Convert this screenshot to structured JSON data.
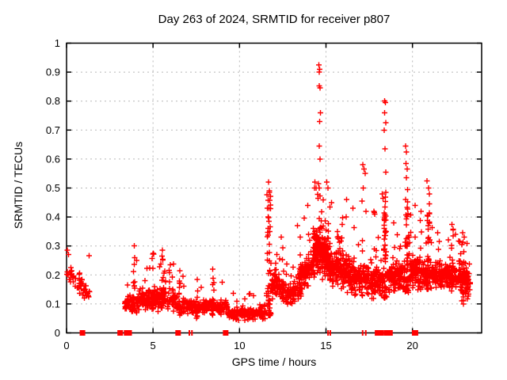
{
  "chart": {
    "title": "Day 263 of 2024, SRMTID for receiver p807",
    "xlabel": "GPS time / hours",
    "ylabel": "SRMTID / TECUs"
  },
  "colors": {
    "marker": "#ff0000",
    "grid": "#b8b8b8",
    "frame": "#000000",
    "background": "#ffffff",
    "text": "#000000"
  },
  "chart_data": {
    "type": "scatter",
    "title": "Day 263 of 2024, SRMTID for receiver p807",
    "xlabel": "GPS time / hours",
    "ylabel": "SRMTID / TECUs",
    "series_name": "SRMTID",
    "marker": "plus",
    "marker_color": "#ff0000",
    "grid": true,
    "legend": "none",
    "xlim": [
      0,
      24
    ],
    "ylim": [
      0,
      1
    ],
    "x_ticks": [
      {
        "v": 0,
        "label": "0"
      },
      {
        "v": 5,
        "label": "5"
      },
      {
        "v": 10,
        "label": "10"
      },
      {
        "v": 15,
        "label": "15"
      },
      {
        "v": 20,
        "label": "20"
      }
    ],
    "y_ticks": [
      {
        "v": 0,
        "label": "0"
      },
      {
        "v": 0.1,
        "label": "0.1"
      },
      {
        "v": 0.2,
        "label": "0.2"
      },
      {
        "v": 0.3,
        "label": "0.3"
      },
      {
        "v": 0.4,
        "label": "0.4"
      },
      {
        "v": 0.5,
        "label": "0.5"
      },
      {
        "v": 0.6,
        "label": "0.6"
      },
      {
        "v": 0.7,
        "label": "0.7"
      },
      {
        "v": 0.8,
        "label": "0.8"
      },
      {
        "v": 0.9,
        "label": "0.9"
      },
      {
        "v": 1,
        "label": "1"
      }
    ],
    "seed": 263,
    "outlier_points": [
      [
        14.58,
        0.925
      ],
      [
        14.63,
        0.91
      ],
      [
        14.6,
        0.9
      ],
      [
        14.62,
        0.853
      ],
      [
        14.66,
        0.845
      ],
      [
        14.68,
        0.76
      ],
      [
        14.63,
        0.73
      ],
      [
        14.6,
        0.645
      ],
      [
        14.65,
        0.6
      ],
      [
        14.57,
        0.515
      ],
      [
        14.62,
        0.5
      ],
      [
        15.05,
        0.52
      ],
      [
        15.12,
        0.5
      ],
      [
        17.12,
        0.58
      ],
      [
        17.2,
        0.565
      ],
      [
        17.27,
        0.55
      ],
      [
        17.15,
        0.5
      ],
      [
        17.08,
        0.455
      ],
      [
        17.32,
        0.42
      ],
      [
        17.78,
        0.42
      ],
      [
        17.8,
        0.415
      ],
      [
        17.82,
        0.41
      ],
      [
        18.38,
        0.8
      ],
      [
        18.43,
        0.795
      ],
      [
        18.4,
        0.76
      ],
      [
        18.45,
        0.725
      ],
      [
        18.37,
        0.7
      ],
      [
        18.42,
        0.635
      ],
      [
        18.46,
        0.555
      ],
      [
        18.25,
        0.48
      ],
      [
        18.3,
        0.465
      ],
      [
        18.92,
        0.38
      ],
      [
        19.6,
        0.645
      ],
      [
        19.66,
        0.625
      ],
      [
        19.62,
        0.585
      ],
      [
        19.7,
        0.565
      ],
      [
        19.64,
        0.535
      ],
      [
        19.72,
        0.495
      ],
      [
        20.85,
        0.525
      ],
      [
        20.92,
        0.5
      ],
      [
        20.97,
        0.48
      ],
      [
        20.15,
        0.44
      ],
      [
        20.5,
        0.42
      ],
      [
        11.68,
        0.52
      ],
      [
        11.73,
        0.49
      ],
      [
        11.7,
        0.43
      ],
      [
        11.66,
        0.4
      ],
      [
        11.75,
        0.35
      ],
      [
        16.2,
        0.46
      ],
      [
        16.55,
        0.43
      ],
      [
        15.32,
        0.45
      ],
      [
        14.35,
        0.52
      ],
      [
        14.42,
        0.5
      ],
      [
        12.42,
        0.33
      ],
      [
        12.15,
        0.27
      ],
      [
        13.95,
        0.44
      ],
      [
        13.52,
        0.33
      ],
      [
        22.28,
        0.375
      ],
      [
        22.35,
        0.355
      ],
      [
        22.9,
        0.345
      ],
      [
        23.0,
        0.33
      ],
      [
        21.45,
        0.345
      ],
      [
        0.05,
        0.285
      ],
      [
        0.12,
        0.27
      ],
      [
        3.92,
        0.3
      ],
      [
        5.55,
        0.285
      ],
      [
        5.02,
        0.275
      ],
      [
        6.0,
        0.235
      ],
      [
        6.55,
        0.215
      ],
      [
        7.55,
        0.185
      ],
      [
        8.45,
        0.22
      ],
      [
        9.0,
        0.175
      ],
      [
        10.6,
        0.135
      ]
    ],
    "zero_markers": [
      [
        0.92,
        7
      ],
      [
        3.1,
        7
      ],
      [
        3.45,
        6
      ],
      [
        3.62,
        7
      ],
      [
        6.45,
        7
      ],
      [
        7.1,
        2
      ],
      [
        7.25,
        2
      ],
      [
        9.2,
        7
      ],
      [
        15.12,
        2
      ],
      [
        15.25,
        2
      ],
      [
        17.12,
        2
      ],
      [
        17.3,
        2
      ],
      [
        18.05,
        10
      ],
      [
        18.2,
        7
      ],
      [
        18.55,
        8
      ],
      [
        18.7,
        7
      ],
      [
        20.15,
        8
      ]
    ],
    "density_clusters": [
      {
        "x0": 0.0,
        "x1": 1.35,
        "n": 60,
        "c0": 0.215,
        "c1": 0.13,
        "s": 0.035,
        "min": 0.105,
        "max": 0.29
      },
      {
        "x0": 3.35,
        "x1": 4.2,
        "n": 65,
        "c0": 0.105,
        "c1": 0.1,
        "s": 0.032,
        "min": 0.055,
        "max": 0.25
      },
      {
        "x0": 4.2,
        "x1": 6.35,
        "n": 185,
        "c0": 0.12,
        "c1": 0.115,
        "s": 0.04,
        "min": 0.05,
        "max": 0.25
      },
      {
        "x0": 6.35,
        "x1": 7.35,
        "n": 75,
        "c0": 0.095,
        "c1": 0.09,
        "s": 0.028,
        "min": 0.045,
        "max": 0.2
      },
      {
        "x0": 7.35,
        "x1": 9.35,
        "n": 135,
        "c0": 0.085,
        "c1": 0.09,
        "s": 0.028,
        "min": 0.04,
        "max": 0.19
      },
      {
        "x0": 9.35,
        "x1": 11.5,
        "n": 150,
        "c0": 0.065,
        "c1": 0.07,
        "s": 0.022,
        "min": 0.032,
        "max": 0.14
      },
      {
        "x0": 11.85,
        "x1": 12.55,
        "n": 80,
        "c0": 0.17,
        "c1": 0.155,
        "s": 0.05,
        "min": 0.09,
        "max": 0.3
      },
      {
        "x0": 12.55,
        "x1": 13.25,
        "n": 70,
        "c0": 0.13,
        "c1": 0.14,
        "s": 0.038,
        "min": 0.07,
        "max": 0.24
      },
      {
        "x0": 13.25,
        "x1": 14.25,
        "n": 110,
        "c0": 0.155,
        "c1": 0.24,
        "s": 0.055,
        "min": 0.09,
        "max": 0.4
      },
      {
        "x0": 14.25,
        "x1": 15.15,
        "n": 205,
        "c0": 0.29,
        "c1": 0.26,
        "s": 0.085,
        "min": 0.13,
        "max": 0.52,
        "tail": 0.06
      },
      {
        "x0": 15.15,
        "x1": 16.35,
        "n": 180,
        "c0": 0.23,
        "c1": 0.21,
        "s": 0.065,
        "min": 0.1,
        "max": 0.44,
        "tail": 0.05
      },
      {
        "x0": 16.35,
        "x1": 17.55,
        "n": 140,
        "c0": 0.19,
        "c1": 0.185,
        "s": 0.055,
        "min": 0.09,
        "max": 0.4
      },
      {
        "x0": 17.55,
        "x1": 18.3,
        "n": 105,
        "c0": 0.17,
        "c1": 0.18,
        "s": 0.05,
        "min": 0.09,
        "max": 0.36
      },
      {
        "x0": 18.55,
        "x1": 19.55,
        "n": 130,
        "c0": 0.19,
        "c1": 0.2,
        "s": 0.05,
        "min": 0.1,
        "max": 0.37
      },
      {
        "x0": 19.85,
        "x1": 21.15,
        "n": 180,
        "c0": 0.215,
        "c1": 0.2,
        "s": 0.055,
        "min": 0.11,
        "max": 0.42
      },
      {
        "x0": 21.15,
        "x1": 22.65,
        "n": 170,
        "c0": 0.2,
        "c1": 0.19,
        "s": 0.045,
        "min": 0.11,
        "max": 0.345
      },
      {
        "x0": 22.65,
        "x1": 23.35,
        "n": 100,
        "c0": 0.2,
        "c1": 0.165,
        "s": 0.055,
        "min": 0.07,
        "max": 0.34
      }
    ],
    "spike_columns": [
      {
        "x": 3.91,
        "w": 0.12,
        "n": 12,
        "min": 0.08,
        "max": 0.3,
        "p": 1.7
      },
      {
        "x": 5.0,
        "w": 0.14,
        "n": 14,
        "min": 0.08,
        "max": 0.28,
        "p": 1.7
      },
      {
        "x": 5.6,
        "w": 0.25,
        "n": 20,
        "min": 0.1,
        "max": 0.285,
        "p": 1.6
      },
      {
        "x": 6.55,
        "w": 0.12,
        "n": 8,
        "min": 0.06,
        "max": 0.21,
        "p": 1.6
      },
      {
        "x": 7.55,
        "w": 0.12,
        "n": 8,
        "min": 0.05,
        "max": 0.185,
        "p": 1.6
      },
      {
        "x": 8.47,
        "w": 0.14,
        "n": 10,
        "min": 0.06,
        "max": 0.22,
        "p": 1.6
      },
      {
        "x": 11.7,
        "w": 0.3,
        "n": 55,
        "min": 0.06,
        "max": 0.5,
        "p": 2.2
      },
      {
        "x": 13.52,
        "w": 0.14,
        "n": 10,
        "min": 0.12,
        "max": 0.33,
        "p": 1.6
      },
      {
        "x": 18.42,
        "w": 0.24,
        "n": 55,
        "min": 0.12,
        "max": 0.52,
        "p": 1.8
      },
      {
        "x": 19.7,
        "w": 0.3,
        "n": 48,
        "min": 0.14,
        "max": 0.47,
        "p": 1.7
      },
      {
        "x": 20.9,
        "w": 0.25,
        "n": 30,
        "min": 0.15,
        "max": 0.46,
        "p": 1.8
      },
      {
        "x": 22.32,
        "w": 0.14,
        "n": 12,
        "min": 0.14,
        "max": 0.36,
        "p": 1.5
      },
      {
        "x": 22.92,
        "w": 0.18,
        "n": 14,
        "min": 0.1,
        "max": 0.33,
        "p": 1.5
      }
    ]
  }
}
